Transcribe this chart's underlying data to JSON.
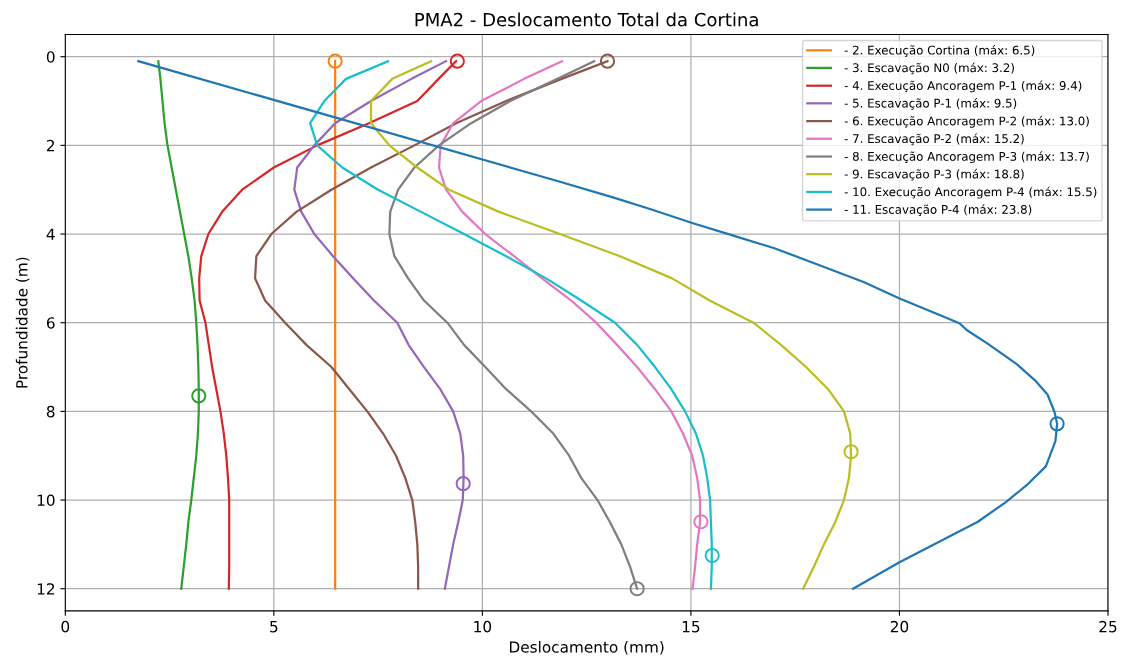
{
  "chart_data": {
    "type": "line",
    "title": "PMA2 - Deslocamento Total da Cortina",
    "xlabel": "Deslocamento (mm)",
    "ylabel": "Profundidade (m)",
    "xlim": [
      0,
      25
    ],
    "xticks": [
      0,
      5,
      10,
      15,
      20,
      25
    ],
    "ylim": [
      12.5,
      -0.5
    ],
    "yticks": [
      0,
      2,
      4,
      6,
      8,
      10,
      12
    ],
    "grid": true,
    "legend": "top right",
    "series": [
      {
        "name": " - 2. Execução Cortina (máx: 6.5)",
        "color": "#ff7f0e",
        "x": [
          6.47,
          6.47
        ],
        "values": [
          0.1,
          12
        ]
      },
      {
        "name": " - 3. Escavação N0 (máx: 3.2)",
        "color": "#2ca02c",
        "x": [
          2.23,
          2.28,
          2.33,
          2.38,
          2.45,
          2.55,
          2.65,
          2.75,
          2.85,
          2.95,
          3.03,
          3.1,
          3.14,
          3.17,
          3.19,
          3.2,
          3.2,
          3.18,
          3.14,
          3.08,
          3.02,
          2.95,
          2.9,
          2.84,
          2.78
        ],
        "values": [
          0.1,
          0.5,
          1,
          1.5,
          2,
          2.5,
          3,
          3.5,
          4,
          4.5,
          5,
          5.5,
          6,
          6.5,
          7,
          7.5,
          8,
          8.5,
          9,
          9.5,
          10,
          10.5,
          11,
          11.5,
          12
        ]
      },
      {
        "name": " - 4. Execução Ancoragem P-1 (máx: 9.4)",
        "color": "#d62728",
        "x": [
          9.37,
          8.95,
          8.44,
          7.28,
          6.04,
          5.0,
          4.24,
          3.76,
          3.43,
          3.26,
          3.21,
          3.22,
          3.36,
          3.44,
          3.52,
          3.62,
          3.72,
          3.8,
          3.86,
          3.9,
          3.93,
          3.93,
          3.93,
          3.93,
          3.92
        ],
        "values": [
          0.1,
          0.5,
          1,
          1.5,
          2,
          2.5,
          3,
          3.5,
          4,
          4.5,
          5,
          5.5,
          6,
          6.5,
          7,
          7.5,
          8,
          8.5,
          9,
          9.5,
          10,
          10.5,
          11,
          11.5,
          12
        ]
      },
      {
        "name": " - 5. Escavação P-1 (máx: 9.5)",
        "color": "#9467bd",
        "x": [
          9.13,
          8.3,
          7.33,
          6.47,
          5.97,
          5.56,
          5.49,
          5.66,
          5.97,
          6.42,
          6.9,
          7.4,
          7.96,
          8.23,
          8.6,
          8.99,
          9.3,
          9.47,
          9.54,
          9.55,
          9.53,
          9.42,
          9.3,
          9.2,
          9.1
        ],
        "values": [
          0.1,
          0.5,
          1,
          1.5,
          2,
          2.5,
          3,
          3.5,
          4,
          4.5,
          5,
          5.5,
          6,
          6.5,
          7,
          7.5,
          8,
          8.5,
          9,
          9.5,
          10,
          10.5,
          11,
          11.5,
          12
        ]
      },
      {
        "name": " - 6. Execução Ancoragem P-2 (máx: 13.0)",
        "color": "#8c564b",
        "x": [
          13.0,
          11.9,
          10.57,
          9.37,
          8.37,
          7.33,
          6.38,
          5.54,
          4.94,
          4.58,
          4.55,
          4.79,
          5.27,
          5.78,
          6.38,
          6.81,
          7.24,
          7.62,
          7.93,
          8.15,
          8.32,
          8.39,
          8.44,
          8.46,
          8.46
        ],
        "values": [
          0.1,
          0.5,
          1,
          1.5,
          2,
          2.5,
          3,
          3.5,
          4,
          4.5,
          5,
          5.5,
          6,
          6.5,
          7,
          7.5,
          8,
          8.5,
          9,
          9.5,
          10,
          10.5,
          11,
          11.5,
          12
        ]
      },
      {
        "name": " - 7. Escavação P-2 (máx: 15.2)",
        "color": "#e377c2",
        "x": [
          11.91,
          11.0,
          9.97,
          9.3,
          9.0,
          8.96,
          9.13,
          9.52,
          10.07,
          10.76,
          11.43,
          12.13,
          12.73,
          13.23,
          13.71,
          14.14,
          14.53,
          14.81,
          15.03,
          15.15,
          15.22,
          15.22,
          15.15,
          15.1,
          15.04
        ],
        "values": [
          0.1,
          0.5,
          1,
          1.5,
          2,
          2.5,
          3,
          3.5,
          4,
          4.5,
          5,
          5.5,
          6,
          6.5,
          7,
          7.5,
          8,
          8.5,
          9,
          9.5,
          10,
          10.5,
          11,
          11.5,
          12
        ]
      },
      {
        "name": " - 8. Execução Ancoragem P-3 (máx: 13.7)",
        "color": "#7f7f7f",
        "x": [
          12.68,
          11.8,
          10.67,
          9.73,
          8.96,
          8.37,
          7.98,
          7.79,
          7.77,
          7.89,
          8.22,
          8.6,
          9.16,
          9.56,
          10.07,
          10.57,
          11.17,
          11.7,
          12.08,
          12.37,
          12.76,
          13.06,
          13.33,
          13.54,
          13.71
        ],
        "values": [
          0.1,
          0.5,
          1,
          1.5,
          2,
          2.5,
          3,
          3.5,
          4,
          4.5,
          5,
          5.5,
          6,
          6.5,
          7,
          7.5,
          8,
          8.5,
          9,
          9.5,
          10,
          10.5,
          11,
          11.5,
          12
        ]
      },
      {
        "name": " - 9. Escavação P-3 (máx: 18.8)",
        "color": "#bcbd22",
        "x": [
          8.77,
          7.84,
          7.33,
          7.33,
          7.77,
          8.44,
          9.2,
          10.4,
          11.86,
          13.3,
          14.55,
          15.45,
          16.5,
          17.16,
          17.76,
          18.29,
          18.67,
          18.82,
          18.84,
          18.79,
          18.67,
          18.46,
          18.19,
          17.95,
          17.69
        ],
        "values": [
          0.1,
          0.5,
          1,
          1.5,
          2,
          2.5,
          3,
          3.5,
          4,
          4.5,
          5,
          5.5,
          6,
          6.5,
          7,
          7.5,
          8,
          8.5,
          9,
          9.5,
          10,
          10.5,
          11,
          11.5,
          12
        ]
      },
      {
        "name": " - 10. Execução Ancoragem P-4 (máx: 15.5)",
        "color": "#17becf",
        "x": [
          7.74,
          6.73,
          6.21,
          5.87,
          6.04,
          6.64,
          7.5,
          8.53,
          9.56,
          10.57,
          11.53,
          12.37,
          13.18,
          13.71,
          14.14,
          14.53,
          14.86,
          15.12,
          15.29,
          15.39,
          15.46,
          15.48,
          15.5,
          15.5,
          15.48
        ],
        "values": [
          0.1,
          0.5,
          1,
          1.5,
          2,
          2.5,
          3,
          3.5,
          4,
          4.5,
          5,
          5.5,
          6,
          6.5,
          7,
          7.5,
          8,
          8.5,
          9,
          9.5,
          10,
          10.5,
          11,
          11.5,
          12
        ]
      },
      {
        "name": " - 11. Escavação P-4 (máx: 23.8)",
        "color": "#1f77b4",
        "x": [
          1.75,
          11.86,
          13.15,
          14.0,
          15.03,
          15.96,
          17.0,
          18.02,
          19.14,
          19.99,
          21.02,
          21.45,
          21.62,
          22.14,
          22.82,
          23.25,
          23.55,
          23.72,
          23.78,
          23.74,
          23.51,
          23.08,
          22.56,
          21.88,
          19.99,
          18.89
        ],
        "values": [
          0.1,
          2.82,
          3.18,
          3.43,
          3.75,
          4.02,
          4.32,
          4.68,
          5.08,
          5.45,
          5.85,
          6.02,
          6.17,
          6.49,
          6.94,
          7.3,
          7.62,
          8.02,
          8.28,
          8.67,
          9.24,
          9.64,
          10.04,
          10.49,
          11.41,
          12.0
        ]
      },
      {
        "type": "scatter",
        "marker": "circle",
        "color": "#ff7f0e",
        "x": [
          6.47
        ],
        "values": [
          0.1
        ]
      },
      {
        "type": "scatter",
        "marker": "circle",
        "color": "#2ca02c",
        "x": [
          3.2
        ],
        "values": [
          7.65
        ]
      },
      {
        "type": "scatter",
        "marker": "circle",
        "color": "#d62728",
        "x": [
          9.4
        ],
        "values": [
          0.1
        ]
      },
      {
        "type": "scatter",
        "marker": "circle",
        "color": "#9467bd",
        "x": [
          9.54
        ],
        "values": [
          9.63
        ]
      },
      {
        "type": "scatter",
        "marker": "circle",
        "color": "#8c564b",
        "x": [
          13.0
        ],
        "values": [
          0.1
        ]
      },
      {
        "type": "scatter",
        "marker": "circle",
        "color": "#e377c2",
        "x": [
          15.24
        ],
        "values": [
          10.49
        ]
      },
      {
        "type": "scatter",
        "marker": "circle",
        "color": "#7f7f7f",
        "x": [
          13.71
        ],
        "values": [
          12.0
        ]
      },
      {
        "type": "scatter",
        "marker": "circle",
        "color": "#bcbd22",
        "x": [
          18.84
        ],
        "values": [
          8.91
        ]
      },
      {
        "type": "scatter",
        "marker": "circle",
        "color": "#17becf",
        "x": [
          15.51
        ],
        "values": [
          11.25
        ]
      },
      {
        "type": "scatter",
        "marker": "circle",
        "color": "#1f77b4",
        "x": [
          23.78
        ],
        "values": [
          8.28
        ]
      }
    ]
  }
}
